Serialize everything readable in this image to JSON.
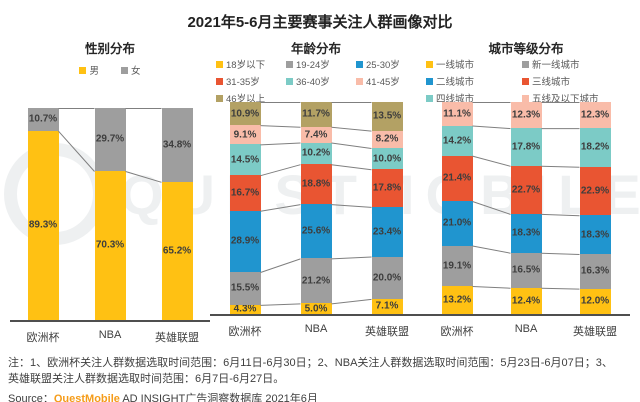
{
  "title": "2021年5-6月主要赛事关注人群画像对比",
  "watermark": {
    "text": "QUESTMOBILE"
  },
  "chart_data": [
    {
      "type": "bar",
      "subtype": "stacked-100-percent",
      "title": "性别分布",
      "categories": [
        "欧洲杯",
        "NBA",
        "英雄联盟"
      ],
      "series": [
        {
          "name": "男",
          "color": "#FFC113",
          "values": [
            89.3,
            70.3,
            65.2
          ]
        },
        {
          "name": "女",
          "color": "#9E9E9E",
          "values": [
            10.7,
            29.7,
            34.8
          ]
        }
      ],
      "value_suffix": "%",
      "legend_position": "top",
      "ylim": [
        0,
        100
      ],
      "grid": false
    },
    {
      "type": "bar",
      "subtype": "stacked-100-percent",
      "title": "年龄分布",
      "categories": [
        "欧洲杯",
        "NBA",
        "英雄联盟"
      ],
      "series": [
        {
          "name": "18岁以下",
          "color": "#FFC113",
          "values": [
            4.3,
            5.0,
            7.1
          ]
        },
        {
          "name": "19-24岁",
          "color": "#9E9E9E",
          "values": [
            15.5,
            21.2,
            20.0
          ]
        },
        {
          "name": "25-30岁",
          "color": "#2095CF",
          "values": [
            28.9,
            25.6,
            23.4
          ]
        },
        {
          "name": "31-35岁",
          "color": "#E95532",
          "values": [
            16.7,
            18.8,
            17.8
          ]
        },
        {
          "name": "36-40岁",
          "color": "#7CCBC6",
          "values": [
            14.5,
            10.2,
            10.0
          ]
        },
        {
          "name": "41-45岁",
          "color": "#F9BCA9",
          "values": [
            9.1,
            7.4,
            8.2
          ]
        },
        {
          "name": "46岁以上",
          "color": "#B3A164",
          "values": [
            10.9,
            11.7,
            13.5
          ]
        }
      ],
      "value_suffix": "%",
      "legend_position": "top",
      "ylim": [
        0,
        100
      ],
      "grid": false
    },
    {
      "type": "bar",
      "subtype": "stacked-100-percent",
      "title": "城市等级分布",
      "categories": [
        "欧洲杯",
        "NBA",
        "英雄联盟"
      ],
      "series": [
        {
          "name": "一线城市",
          "color": "#FFC113",
          "values": [
            13.2,
            12.4,
            12.0
          ]
        },
        {
          "name": "新一线城市",
          "color": "#9E9E9E",
          "values": [
            19.1,
            16.5,
            16.3
          ]
        },
        {
          "name": "二线城市",
          "color": "#2095CF",
          "values": [
            21.0,
            18.3,
            18.3
          ]
        },
        {
          "name": "三线城市",
          "color": "#E95532",
          "values": [
            21.4,
            22.7,
            22.9
          ]
        },
        {
          "name": "四线城市",
          "color": "#7CCBC6",
          "values": [
            14.2,
            17.8,
            18.2
          ]
        },
        {
          "name": "五线及以下城市",
          "color": "#F9BCA9",
          "values": [
            11.1,
            12.3,
            12.3
          ]
        }
      ],
      "value_suffix": "%",
      "legend_position": "top",
      "ylim": [
        0,
        100
      ],
      "grid": false
    }
  ],
  "notes": {
    "line1": "注：1、欧洲杯关注人群数据选取时间范围：6月11日-6月30日；2、NBA关注人群数据选取时间范围：5月23日-6月07日；3、",
    "line2": "英雄联盟关注人群数据选取时间范围：6月7日-6月27日。",
    "source_label": "Source：",
    "source_brand": "QuestMobile",
    "source_suffix": " AD INSIGHT广告洞察数据库 2021年6月"
  },
  "colors": {
    "brand_orange": "#F59C1A",
    "axis": "#4F4F4F",
    "connector": "#7F7F7F"
  }
}
